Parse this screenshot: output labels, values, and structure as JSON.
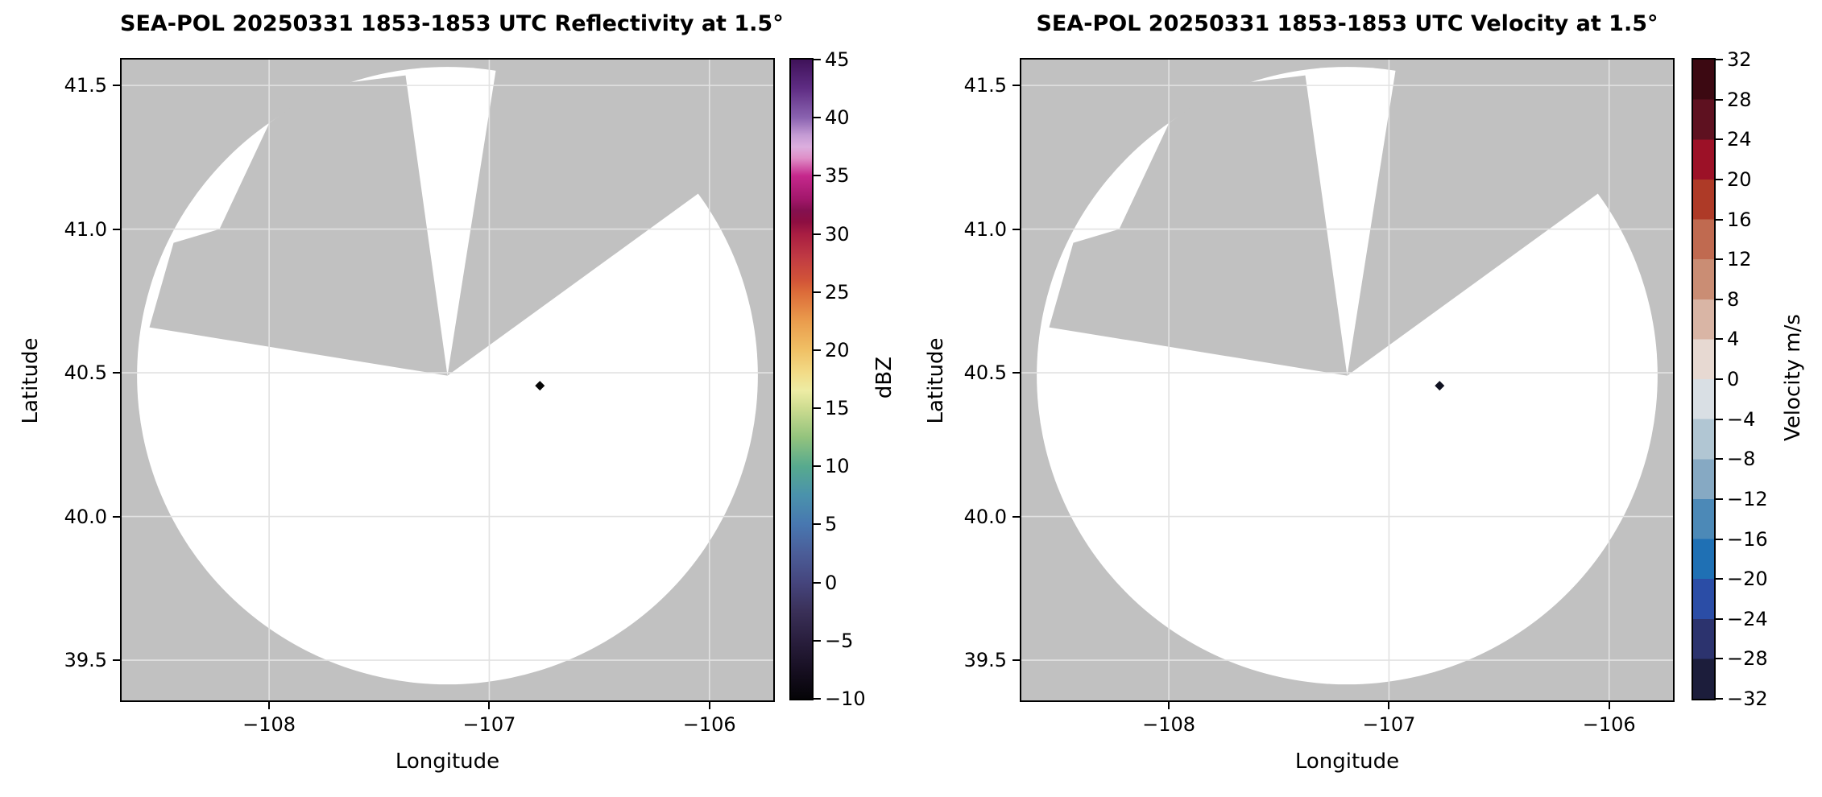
{
  "panels": [
    {
      "title": "SEA-POL 20250331 1853-1853 UTC Reflectivity at 1.5°",
      "xlabel": "Longitude",
      "ylabel": "Latitude",
      "xlim": [
        -108.67,
        -105.71
      ],
      "ylim": [
        39.36,
        41.59
      ],
      "x_ticks": [
        {
          "v": -108,
          "label": "−108"
        },
        {
          "v": -107,
          "label": "−107"
        },
        {
          "v": -106,
          "label": "−106"
        }
      ],
      "y_ticks": [
        {
          "v": 41.5,
          "label": "41.5"
        },
        {
          "v": 41.0,
          "label": "41.0"
        },
        {
          "v": 40.5,
          "label": "40.5"
        },
        {
          "v": 40.0,
          "label": "40.0"
        },
        {
          "v": 39.5,
          "label": "39.5"
        }
      ],
      "colorbar": {
        "label": "dBZ",
        "style": "continuous",
        "vmin": -10,
        "vmax": 45,
        "ticks": [
          {
            "v": 45,
            "label": "45"
          },
          {
            "v": 40,
            "label": "40"
          },
          {
            "v": 35,
            "label": "35"
          },
          {
            "v": 30,
            "label": "30"
          },
          {
            "v": 25,
            "label": "25"
          },
          {
            "v": 20,
            "label": "20"
          },
          {
            "v": 15,
            "label": "15"
          },
          {
            "v": 10,
            "label": "10"
          },
          {
            "v": 5,
            "label": "5"
          },
          {
            "v": 0,
            "label": "0"
          },
          {
            "v": -5,
            "label": "−5"
          },
          {
            "v": -10,
            "label": "−10"
          }
        ],
        "gradient_stops": [
          {
            "v": 45,
            "color": "#3f1259"
          },
          {
            "v": 42.5,
            "color": "#5f2d84"
          },
          {
            "v": 40,
            "color": "#8a63b0"
          },
          {
            "v": 38.5,
            "color": "#c49bd4"
          },
          {
            "v": 37.5,
            "color": "#dcaede"
          },
          {
            "v": 36.5,
            "color": "#df8ec7"
          },
          {
            "v": 35,
            "color": "#c5288c"
          },
          {
            "v": 33,
            "color": "#a2176b"
          },
          {
            "v": 32,
            "color": "#84104f"
          },
          {
            "v": 31,
            "color": "#8d0e41"
          },
          {
            "v": 30,
            "color": "#a81d42"
          },
          {
            "v": 28,
            "color": "#c03a43"
          },
          {
            "v": 26,
            "color": "#d25438"
          },
          {
            "v": 25,
            "color": "#dc6b39"
          },
          {
            "v": 22.5,
            "color": "#ea9c4d"
          },
          {
            "v": 20,
            "color": "#f0c065"
          },
          {
            "v": 18,
            "color": "#f2dc88"
          },
          {
            "v": 16.5,
            "color": "#edeca4"
          },
          {
            "v": 15,
            "color": "#cddc90"
          },
          {
            "v": 12.5,
            "color": "#93c37d"
          },
          {
            "v": 10,
            "color": "#57aa8e"
          },
          {
            "v": 7.5,
            "color": "#4a92ac"
          },
          {
            "v": 5,
            "color": "#4877b0"
          },
          {
            "v": 2.5,
            "color": "#4b5d98"
          },
          {
            "v": 0,
            "color": "#45457d"
          },
          {
            "v": -2.5,
            "color": "#3a3058"
          },
          {
            "v": -5,
            "color": "#291e3d"
          },
          {
            "v": -7.5,
            "color": "#170f22"
          },
          {
            "v": -10,
            "color": "#050407"
          }
        ]
      }
    },
    {
      "title": "SEA-POL 20250331 1853-1853 UTC Velocity at 1.5°",
      "xlabel": "Longitude",
      "ylabel": "Latitude",
      "xlim": [
        -108.67,
        -105.71
      ],
      "ylim": [
        39.36,
        41.59
      ],
      "x_ticks": [
        {
          "v": -108,
          "label": "−108"
        },
        {
          "v": -107,
          "label": "−107"
        },
        {
          "v": -106,
          "label": "−106"
        }
      ],
      "y_ticks": [
        {
          "v": 41.5,
          "label": "41.5"
        },
        {
          "v": 41.0,
          "label": "41.0"
        },
        {
          "v": 40.5,
          "label": "40.5"
        },
        {
          "v": 40.0,
          "label": "40.0"
        },
        {
          "v": 39.5,
          "label": "39.5"
        }
      ],
      "colorbar": {
        "label": "Velocity m/s",
        "style": "discrete",
        "vmin": -32,
        "vmax": 32,
        "ticks": [
          {
            "v": 32,
            "label": "32"
          },
          {
            "v": 28,
            "label": "28"
          },
          {
            "v": 24,
            "label": "24"
          },
          {
            "v": 20,
            "label": "20"
          },
          {
            "v": 16,
            "label": "16"
          },
          {
            "v": 12,
            "label": "12"
          },
          {
            "v": 8,
            "label": "8"
          },
          {
            "v": 4,
            "label": "4"
          },
          {
            "v": 0,
            "label": "0"
          },
          {
            "v": -4,
            "label": "−4"
          },
          {
            "v": -8,
            "label": "−8"
          },
          {
            "v": -12,
            "label": "−12"
          },
          {
            "v": -16,
            "label": "−16"
          },
          {
            "v": -20,
            "label": "−20"
          },
          {
            "v": -24,
            "label": "−24"
          },
          {
            "v": -28,
            "label": "−28"
          },
          {
            "v": -32,
            "label": "−32"
          }
        ],
        "bin_colors_top_to_bottom": [
          "#3c0912",
          "#5e1120",
          "#9c1127",
          "#ae3a27",
          "#c06a50",
          "#ca8d74",
          "#d9b5a5",
          "#e7d9d2",
          "#d9dfe4",
          "#b1c6d3",
          "#86a9c3",
          "#4c89b7",
          "#1f70b4",
          "#2b4da6",
          "#2c336e",
          "#1c1d3b"
        ]
      }
    }
  ],
  "chart_data": [
    {
      "type": "heatmap",
      "variant": "radar_ppi",
      "title": "SEA-POL 20250331 1853-1853 UTC Reflectivity at 1.5°",
      "xlabel": "Longitude",
      "ylabel": "Latitude",
      "xlim": [
        -108.67,
        -105.71
      ],
      "ylim": [
        39.36,
        41.59
      ],
      "x_ticks": [
        -108,
        -107,
        -106
      ],
      "y_ticks": [
        41.5,
        41.0,
        40.5,
        40.0,
        39.5
      ],
      "grid": true,
      "grid_color": "#e2e2e2",
      "plot_bg_masked_color": "#c1c1c1",
      "coverage_fill_color": "#ffffff",
      "colorbar_label": "dBZ",
      "value_range": [
        -10,
        45
      ],
      "radar_center": {
        "lon": -107.19,
        "lat": 40.49
      },
      "coverage_radius_deg_lon": 1.41,
      "no_data_wedge_azimuth_deg": [
        9,
        54
      ],
      "blocked_region_azimuth_deg": [
        285,
        352
      ],
      "echoes": [
        {
          "lon": -106.77,
          "lat": 40.455,
          "value_dbz": -10,
          "color": "#060606"
        }
      ]
    },
    {
      "type": "heatmap",
      "variant": "radar_ppi",
      "title": "SEA-POL 20250331 1853-1853 UTC Velocity at 1.5°",
      "xlabel": "Longitude",
      "ylabel": "Latitude",
      "xlim": [
        -108.67,
        -105.71
      ],
      "ylim": [
        39.36,
        41.59
      ],
      "x_ticks": [
        -108,
        -107,
        -106
      ],
      "y_ticks": [
        41.5,
        41.0,
        40.5,
        40.0,
        39.5
      ],
      "grid": true,
      "grid_color": "#e2e2e2",
      "plot_bg_masked_color": "#c1c1c1",
      "coverage_fill_color": "#ffffff",
      "colorbar_label": "Velocity m/s",
      "value_range": [
        -32,
        32
      ],
      "radar_center": {
        "lon": -107.19,
        "lat": 40.49
      },
      "coverage_radius_deg_lon": 1.41,
      "no_data_wedge_azimuth_deg": [
        9,
        54
      ],
      "blocked_region_azimuth_deg": [
        285,
        352
      ],
      "echoes": [
        {
          "lon": -106.77,
          "lat": 40.455,
          "value_ms": -30,
          "color": "#101221"
        }
      ]
    }
  ]
}
